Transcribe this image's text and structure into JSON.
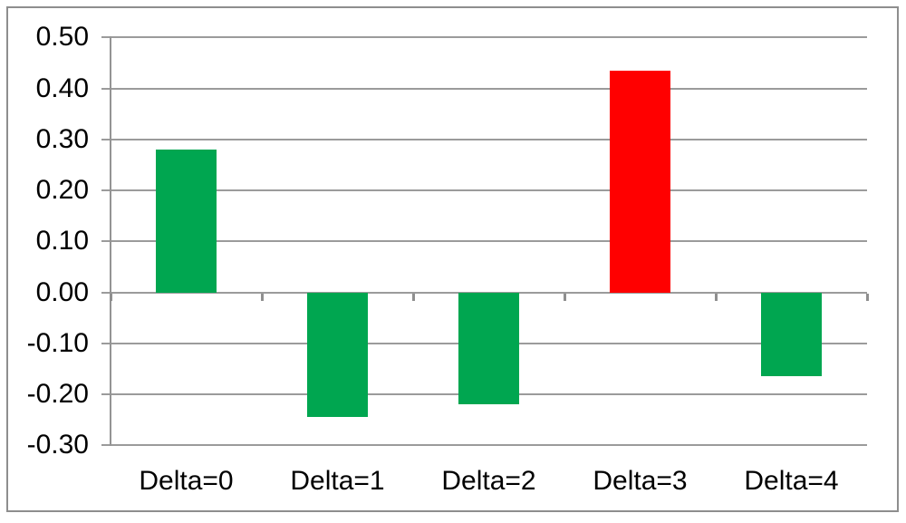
{
  "chart_data": {
    "type": "bar",
    "title": "",
    "xlabel": "",
    "ylabel": "",
    "categories": [
      "Delta=0",
      "Delta=1",
      "Delta=2",
      "Delta=3",
      "Delta=4"
    ],
    "values": [
      0.28,
      -0.245,
      -0.22,
      0.435,
      -0.165
    ],
    "bar_colors": [
      "#00A650",
      "#00A650",
      "#00A650",
      "#FF0000",
      "#00A650"
    ],
    "ylim": [
      -0.3,
      0.5
    ],
    "ytick_step": 0.1,
    "ytick_labels": [
      "0.50",
      "0.40",
      "0.30",
      "0.20",
      "0.10",
      "0.00",
      "-0.10",
      "-0.20",
      "-0.30"
    ],
    "grid": true,
    "legend_position": "none"
  },
  "style": {
    "background": "#FFFFFF",
    "border_color": "#8E8E8E",
    "gridline_color": "#9B9B9B",
    "axis_color": "#949494",
    "tick_color": "#8F8F8F",
    "text_color": "#000000",
    "green_bar": "#00A650",
    "red_bar": "#FF0000"
  }
}
